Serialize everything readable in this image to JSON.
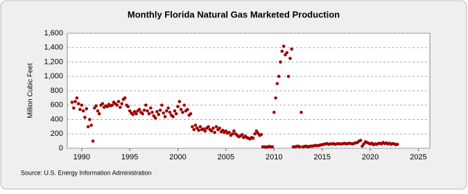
{
  "chart_data": {
    "type": "scatter",
    "title": "Monthly Florida Natural Gas Marketed Production",
    "y_label": "Million Cubic Feet",
    "source": "Source: U.S. Energy Information Administration",
    "color": "#a00000",
    "grid": true,
    "xlim": [
      1988.5,
      2026.2
    ],
    "xticks": [
      1990,
      1995,
      2000,
      2005,
      2010,
      2015,
      2020,
      2025
    ],
    "ylim": [
      0,
      1600
    ],
    "yticks": [
      0,
      200,
      400,
      600,
      800,
      {
        "value": 1000,
        "label": "1,000"
      },
      {
        "value": 1200,
        "label": "1,200"
      },
      {
        "value": 1400,
        "label": "1,400"
      },
      {
        "value": 1600,
        "label": "1,600"
      }
    ],
    "x": [
      1989.0,
      1989.17,
      1989.33,
      1989.5,
      1989.67,
      1989.83,
      1990.0,
      1990.17,
      1990.33,
      1990.5,
      1990.67,
      1990.83,
      1991.0,
      1991.17,
      1991.33,
      1991.5,
      1991.67,
      1991.83,
      1992.0,
      1992.17,
      1992.33,
      1992.5,
      1992.67,
      1992.83,
      1993.0,
      1993.17,
      1993.33,
      1993.5,
      1993.67,
      1993.83,
      1994.0,
      1994.17,
      1994.33,
      1994.5,
      1994.67,
      1994.83,
      1995.0,
      1995.17,
      1995.33,
      1995.5,
      1995.67,
      1995.83,
      1996.0,
      1996.17,
      1996.33,
      1996.5,
      1996.67,
      1996.83,
      1997.0,
      1997.17,
      1997.33,
      1997.5,
      1997.67,
      1997.83,
      1998.0,
      1998.17,
      1998.33,
      1998.5,
      1998.67,
      1998.83,
      1999.0,
      1999.17,
      1999.33,
      1999.5,
      1999.67,
      1999.83,
      2000.0,
      2000.17,
      2000.33,
      2000.5,
      2000.67,
      2000.83,
      2001.0,
      2001.17,
      2001.33,
      2001.5,
      2001.67,
      2001.83,
      2002.0,
      2002.17,
      2002.33,
      2002.5,
      2002.67,
      2002.83,
      2003.0,
      2003.17,
      2003.33,
      2003.5,
      2003.67,
      2003.83,
      2004.0,
      2004.17,
      2004.33,
      2004.5,
      2004.67,
      2004.83,
      2005.0,
      2005.17,
      2005.33,
      2005.5,
      2005.67,
      2005.83,
      2006.0,
      2006.17,
      2006.33,
      2006.5,
      2006.67,
      2006.83,
      2007.0,
      2007.17,
      2007.33,
      2007.5,
      2007.67,
      2007.83,
      2008.0,
      2008.17,
      2008.33,
      2008.5,
      2008.67,
      2008.83,
      2009.0,
      2009.17,
      2009.33,
      2009.5,
      2009.67,
      2009.83,
      2010.0,
      2010.17,
      2010.33,
      2010.5,
      2010.67,
      2010.83,
      2011.0,
      2011.17,
      2011.33,
      2011.5,
      2011.67,
      2011.83,
      2012.0,
      2012.17,
      2012.33,
      2012.5,
      2012.67,
      2012.83,
      2013.0,
      2013.17,
      2013.33,
      2013.5,
      2013.67,
      2013.83,
      2014.0,
      2014.17,
      2014.33,
      2014.5,
      2014.67,
      2014.83,
      2015.0,
      2015.17,
      2015.33,
      2015.5,
      2015.67,
      2015.83,
      2016.0,
      2016.17,
      2016.33,
      2016.5,
      2016.67,
      2016.83,
      2017.0,
      2017.17,
      2017.33,
      2017.5,
      2017.67,
      2017.83,
      2018.0,
      2018.17,
      2018.33,
      2018.5,
      2018.67,
      2018.83,
      2019.0,
      2019.17,
      2019.33,
      2019.5,
      2019.67,
      2019.83,
      2020.0,
      2020.17,
      2020.33,
      2020.5,
      2020.67,
      2020.83,
      2021.0,
      2021.17,
      2021.33,
      2021.5,
      2021.67,
      2021.83,
      2022.0,
      2022.17,
      2022.33,
      2022.5,
      2022.67,
      2022.83
    ],
    "values": [
      640,
      560,
      650,
      700,
      620,
      540,
      600,
      520,
      430,
      550,
      300,
      400,
      320,
      100,
      560,
      590,
      520,
      480,
      600,
      620,
      570,
      590,
      580,
      610,
      590,
      600,
      640,
      620,
      600,
      650,
      570,
      620,
      680,
      700,
      600,
      580,
      520,
      490,
      470,
      510,
      480,
      520,
      540,
      500,
      480,
      530,
      600,
      520,
      480,
      560,
      500,
      450,
      420,
      510,
      470,
      530,
      600,
      490,
      440,
      520,
      560,
      500,
      460,
      440,
      520,
      480,
      580,
      650,
      540,
      500,
      600,
      520,
      540,
      460,
      480,
      300,
      260,
      320,
      280,
      250,
      300,
      260,
      270,
      240,
      280,
      300,
      260,
      240,
      280,
      220,
      300,
      260,
      280,
      230,
      250,
      220,
      240,
      210,
      220,
      180,
      200,
      240,
      200,
      180,
      160,
      170,
      190,
      150,
      170,
      150,
      140,
      130,
      150,
      140,
      200,
      240,
      210,
      180,
      190,
      20,
      20,
      15,
      20,
      25,
      20,
      20,
      500,
      700,
      900,
      1000,
      1200,
      1350,
      1420,
      1300,
      1330,
      1000,
      1250,
      1380,
      20,
      20,
      25,
      30,
      20,
      500,
      20,
      25,
      30,
      20,
      25,
      30,
      30,
      35,
      40,
      35,
      40,
      45,
      50,
      55,
      60,
      65,
      55,
      60,
      60,
      65,
      55,
      60,
      65,
      60,
      60,
      65,
      70,
      60,
      65,
      70,
      65,
      60,
      70,
      75,
      80,
      100,
      110,
      30,
      60,
      90,
      80,
      70,
      60,
      70,
      50,
      60,
      55,
      65,
      70,
      60,
      80,
      65,
      75,
      60,
      70,
      55,
      65,
      60,
      50,
      55
    ]
  }
}
